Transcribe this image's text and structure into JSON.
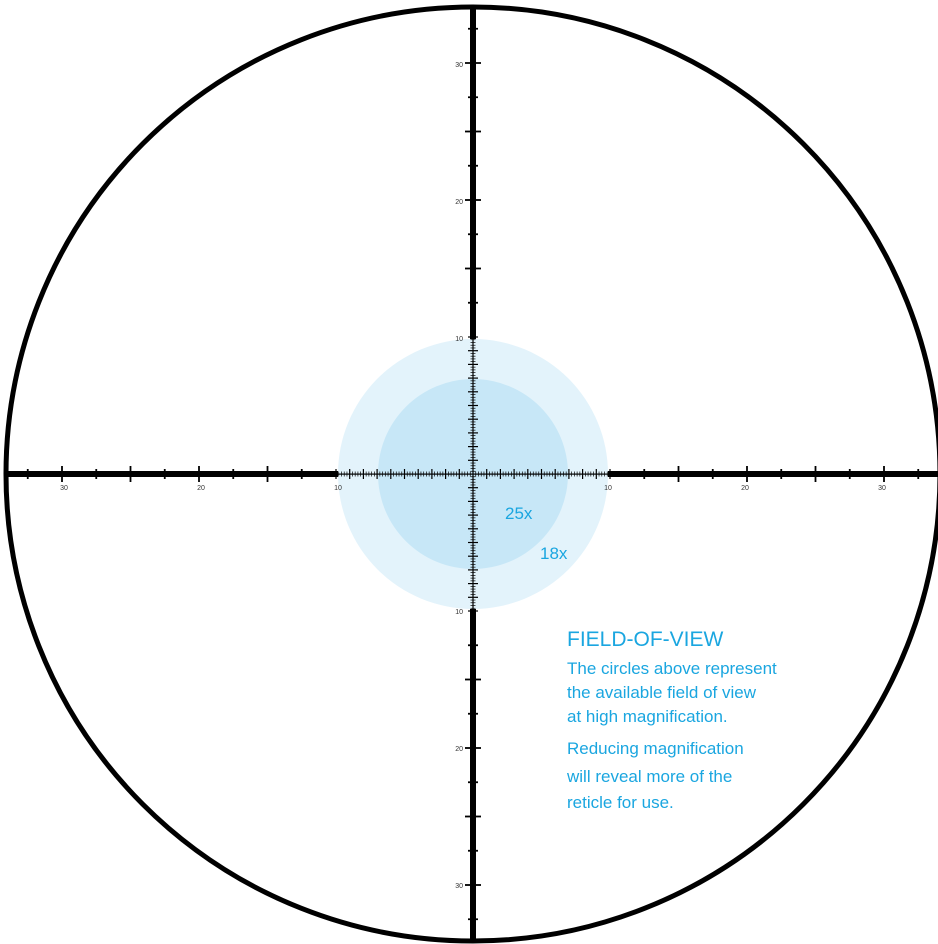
{
  "reticle": {
    "x_axis_labels": [
      "30",
      "20",
      "10",
      "10",
      "20",
      "30"
    ],
    "y_axis_labels": [
      "30",
      "20",
      "10",
      "10",
      "20",
      "30"
    ]
  },
  "magnification_circles": [
    {
      "label": "25x",
      "radius_mils": 7
    },
    {
      "label": "18x",
      "radius_mils": 10
    }
  ],
  "info": {
    "title": "FIELD-OF-VIEW",
    "lines": [
      "The circles above represent",
      "the available field of view",
      "at high magnification.",
      "Reducing magnification",
      "will reveal more of the",
      "reticle for use."
    ]
  },
  "colors": {
    "reticle": "#000000",
    "accent_text": "#1aa6e0",
    "circle_outer": "#e3f3fb",
    "circle_inner": "#c7e7f7"
  }
}
